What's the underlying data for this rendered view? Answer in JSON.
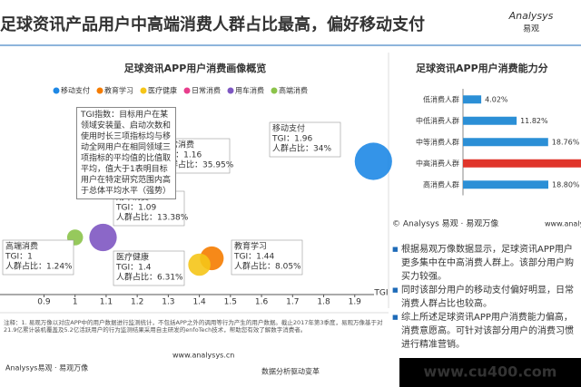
{
  "header": {
    "title": "足球资讯产品用户中高端消费人群占比最高，偏好移动支付",
    "logo": "Analysys",
    "logo_cn": "易观"
  },
  "chart_data": [
    {
      "type": "bubble",
      "title": "足球资讯APP用户消费画像概览",
      "x_label": "TGI",
      "note": "TGI指数：目标用户在某领域安装量、启动次数和使用时长三项指标均与移动全网用户在相同领域三项指标的平均值的比值取平均，值大于1表明目标用户在特定研究范围内高于总体平均水平（强势）",
      "xlim": [
        0.7,
        2.0
      ],
      "xticks": [
        0.7,
        0.9,
        1,
        1.1,
        1.2,
        1.3,
        1.4,
        1.5,
        1.6,
        1.7,
        1.8,
        1.9
      ],
      "series": [
        {
          "name": "移动支付",
          "color": "#1e88e5",
          "x": [
            1.96
          ],
          "values": [
            34
          ],
          "tgi_labels": [
            "TGI：1.96"
          ],
          "value_labels": [
            "人群占比：34%"
          ]
        },
        {
          "name": "教育学习",
          "color": "#f57c00",
          "x": [
            1.44
          ],
          "values": [
            8.05
          ],
          "tgi_labels": [
            "TGI：1.44"
          ],
          "value_labels": [
            "人群占比：8.05%"
          ]
        },
        {
          "name": "医疗健康",
          "color": "#f5c518",
          "x": [
            1.4
          ],
          "values": [
            6.31
          ],
          "tgi_labels": [
            "TGI：1.4"
          ],
          "value_labels": [
            "人群占比：6.31%"
          ]
        },
        {
          "name": "日常消费",
          "color": "#e83e8c",
          "x": [
            1.16
          ],
          "values": [
            35.95
          ],
          "tgi_labels": [
            "TGI：1.16"
          ],
          "value_labels": [
            "人群占比：35.95%"
          ]
        },
        {
          "name": "用车消费",
          "color": "#7e57c2",
          "x": [
            1.09
          ],
          "values": [
            13.38
          ],
          "tgi_labels": [
            "TGI：1.09"
          ],
          "value_labels": [
            "人群占比：13.38%"
          ]
        },
        {
          "name": "高端消费",
          "color": "#8bc34a",
          "x": [
            1
          ],
          "values": [
            1.24
          ],
          "tgi_labels": [
            "TGI：1"
          ],
          "value_labels": [
            "人群占比：1.24%"
          ]
        }
      ]
    },
    {
      "type": "hbar",
      "title": "足球资讯APP用户消费能力分",
      "categories": [
        "低消费人群",
        "中低消费人群",
        "中等消费人群",
        "中高消费人群",
        "高消费人群"
      ],
      "values": [
        4.02,
        11.82,
        18.76,
        46.6,
        18.8
      ],
      "value_labels": [
        "4.02%",
        "11.82%",
        "18.76%",
        null,
        "18.80%"
      ],
      "colors": [
        "#2b8fd6",
        "#2b8fd6",
        "#2b8fd6",
        "#e0352b",
        "#2b8fd6"
      ],
      "xlim": [
        0,
        50
      ]
    }
  ],
  "right_credit": "© Analysys 易观 · 易观万像",
  "right_url": "www.analysys.cn",
  "bullets": [
    "根据易观万像数据显示，足球资讯APP用户更多集中在中高消费人群上。该部分用户购买力较强。",
    "同时该部分用户的移动支付偏好明显，日常消费人群占比也较高。",
    "综上所述足球资讯APP用户消费能力偏高，消费意愿高。可针对该部分用户的消费习惯进行精准营销。"
  ],
  "source": "注释：1. 易观万像以对应APP中的用户数据进行监测统计，不包括APP之外的调用等行为产生的用户数据。截止2017年第3季度，易观万像基于对21.9亿累计装机覆盖及5.2亿活跃用户的行为监测结果采用自主研发的enfoTech技术，帮助您有效了解数字消费者。",
  "footer": {
    "brand": "Analysys易观 · 易观万像",
    "url": "www.analysys.cn",
    "slogan": "数据分析驱动变革"
  },
  "watermark": "www.cu400.com"
}
